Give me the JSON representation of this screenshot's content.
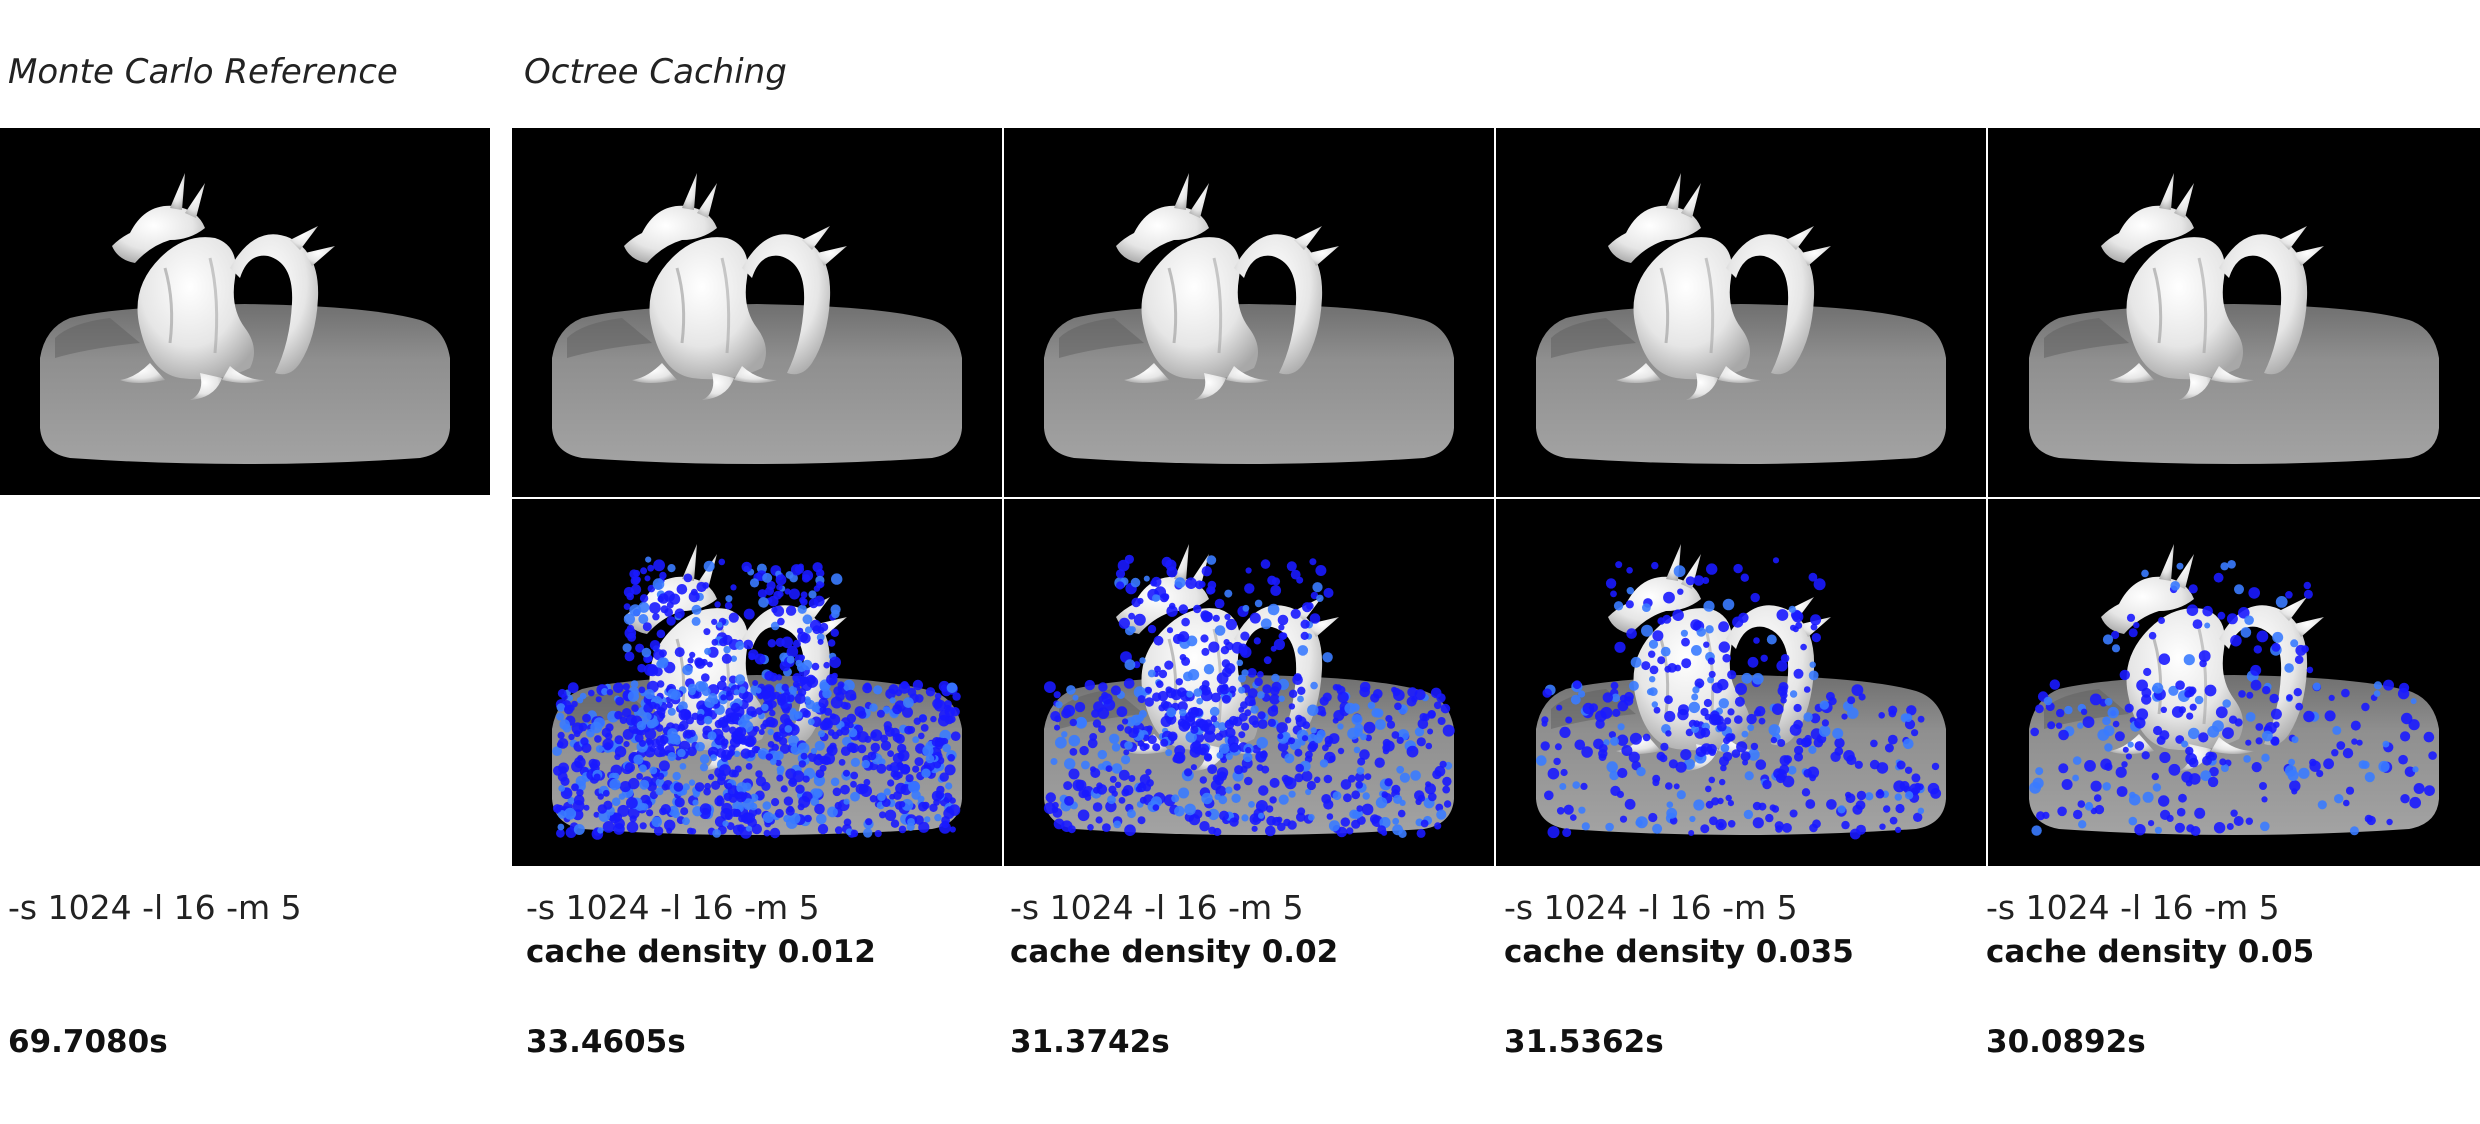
{
  "headings": {
    "reference": "Monte Carlo Reference",
    "octree": "Octree Caching"
  },
  "reference": {
    "params": "-s 1024 -l 16 -m 5",
    "time": "69.7080s"
  },
  "octree": [
    {
      "params": "-s 1024 -l 16 -m 5",
      "density": "cache density 0.012",
      "time": "33.4605s",
      "cache_marker_density": 0.012
    },
    {
      "params": "-s 1024 -l 16 -m 5",
      "density": "cache density 0.02",
      "time": "31.3742s",
      "cache_marker_density": 0.02
    },
    {
      "params": "-s 1024 -l 16 -m 5",
      "density": "cache density 0.035",
      "time": "31.5362s",
      "cache_marker_density": 0.035
    },
    {
      "params": "-s 1024 -l 16 -m 5",
      "density": "cache density 0.05",
      "time": "30.0892s",
      "cache_marker_density": 0.05
    }
  ],
  "colors": {
    "background": "#000000",
    "pedestal": "#8f8f8f",
    "dragon": "#e6e6e6",
    "cache_marker": "#1a1aff",
    "cache_marker_light": "#3a7bff"
  },
  "icons": {
    "render": "dragon-render-image",
    "cache": "cache-points-render-image"
  }
}
